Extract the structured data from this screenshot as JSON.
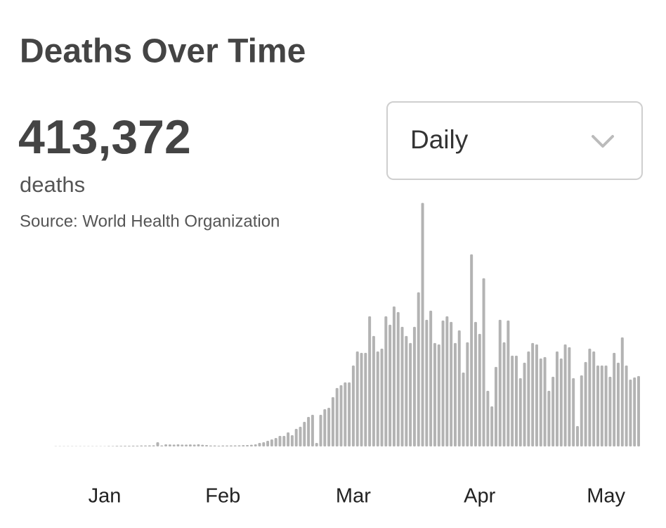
{
  "header": {
    "title": "Deaths Over Time"
  },
  "summary": {
    "total": "413,372",
    "unit": "deaths",
    "source": "Source:  World Health Organization"
  },
  "dropdown": {
    "selected": "Daily"
  },
  "chart_data": {
    "type": "bar",
    "color": "#b3b3b3",
    "ylim": [
      0,
      11000
    ],
    "categories": [
      null,
      null,
      null,
      null,
      null,
      null,
      null,
      null,
      null,
      null,
      null,
      null,
      null,
      null,
      null,
      null,
      null,
      null,
      null,
      null,
      "Jan",
      null,
      null,
      null,
      null,
      null,
      null,
      null,
      null,
      null,
      null,
      null,
      null,
      null,
      null,
      null,
      null,
      null,
      null,
      null,
      null,
      null,
      null,
      null,
      null,
      null,
      null,
      null,
      null,
      "Feb",
      null,
      null,
      null,
      null,
      null,
      null,
      null,
      null,
      null,
      null,
      null,
      null,
      null,
      null,
      null,
      null,
      null,
      null,
      null,
      null,
      null,
      null,
      null,
      null,
      null,
      null,
      null,
      null,
      null,
      null,
      null,
      "Mar",
      null,
      null,
      null,
      null,
      null,
      null,
      null,
      null,
      null,
      null,
      null,
      null,
      null,
      null,
      null,
      null,
      null,
      null,
      null,
      null,
      null,
      null,
      null,
      null,
      null,
      null,
      null,
      null,
      null,
      null,
      "Apr",
      null,
      null,
      null,
      null,
      null,
      null,
      null,
      null,
      null,
      null,
      null,
      null,
      null,
      null,
      null,
      null,
      null,
      null,
      null,
      null,
      null,
      null,
      null,
      null,
      null,
      null,
      null,
      null,
      null,
      null,
      "May",
      null,
      null,
      null,
      null,
      null,
      null,
      null,
      null
    ],
    "values": [
      0,
      0,
      0,
      0,
      0,
      0,
      0,
      0,
      10,
      10,
      10,
      10,
      10,
      10,
      10,
      10,
      10,
      10,
      10,
      10,
      10,
      20,
      20,
      25,
      25,
      30,
      30,
      35,
      35,
      40,
      40,
      45,
      50,
      180,
      45,
      90,
      85,
      80,
      90,
      80,
      80,
      85,
      80,
      95,
      70,
      60,
      40,
      40,
      35,
      40,
      40,
      45,
      45,
      50,
      55,
      60,
      70,
      90,
      150,
      180,
      240,
      300,
      360,
      450,
      450,
      600,
      480,
      750,
      840,
      1050,
      1260,
      1350,
      150,
      1350,
      1590,
      1650,
      2100,
      2490,
      2610,
      2730,
      2730,
      3450,
      4050,
      3990,
      3990,
      5550,
      4710,
      4050,
      4170,
      5550,
      5190,
      5970,
      5730,
      5100,
      4710,
      4410,
      5100,
      6570,
      10380,
      5400,
      5790,
      4410,
      4350,
      5370,
      5550,
      5310,
      4410,
      4950,
      3150,
      4440,
      8190,
      5310,
      4800,
      7170,
      2370,
      1710,
      3390,
      5400,
      4440,
      5370,
      3870,
      3870,
      2910,
      3570,
      4050,
      4410,
      4350,
      3750,
      3810,
      2370,
      2970,
      4050,
      3750,
      4350,
      4230,
      2910,
      870,
      3030,
      3600,
      4170,
      4050,
      3450,
      3450,
      3450,
      2970,
      3990,
      3570,
      4650,
      3450,
      2850,
      2940,
      3000
    ]
  }
}
